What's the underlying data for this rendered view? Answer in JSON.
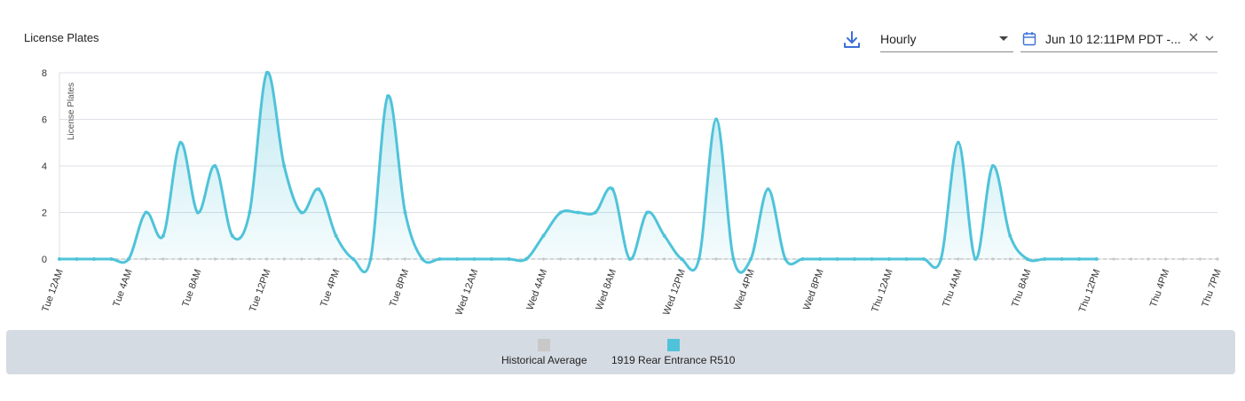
{
  "header": {
    "title": "License Plates",
    "interval_value": "Hourly",
    "date_range_value": "Jun 10 12:11PM PDT -..."
  },
  "icons": {
    "download": "download-icon",
    "dropdown": "caret-down-icon",
    "calendar": "calendar-icon",
    "clear": "close-icon",
    "expand": "chevron-down-icon"
  },
  "colors": {
    "series_primary": "#4fc3d9",
    "series_fill": "#bfe9f2",
    "historical": "#c8c8c8",
    "legend_bg": "#d5dbe3",
    "accent": "#3b6fd8"
  },
  "legend": {
    "items": [
      {
        "label": "Historical Average",
        "color": "#c8c8c8"
      },
      {
        "label": "1919 Rear Entrance R510",
        "color": "#4fc3d9"
      }
    ]
  },
  "chart_data": {
    "type": "area",
    "title": "License Plates",
    "ylabel": "License Plates",
    "xlabel": "",
    "ylim": [
      0,
      8
    ],
    "yticks": [
      0,
      2,
      4,
      6,
      8
    ],
    "x_hour_range": [
      0,
      67
    ],
    "x_ticks": [
      {
        "label": "Tue 12AM",
        "hour": 0
      },
      {
        "label": "Tue 4AM",
        "hour": 4
      },
      {
        "label": "Tue 8AM",
        "hour": 8
      },
      {
        "label": "Tue 12PM",
        "hour": 12
      },
      {
        "label": "Tue 4PM",
        "hour": 16
      },
      {
        "label": "Tue 8PM",
        "hour": 20
      },
      {
        "label": "Wed 12AM",
        "hour": 24
      },
      {
        "label": "Wed 4AM",
        "hour": 28
      },
      {
        "label": "Wed 8AM",
        "hour": 32
      },
      {
        "label": "Wed 12PM",
        "hour": 36
      },
      {
        "label": "Wed 4PM",
        "hour": 40
      },
      {
        "label": "Wed 8PM",
        "hour": 44
      },
      {
        "label": "Thu 12AM",
        "hour": 48
      },
      {
        "label": "Thu 4AM",
        "hour": 52
      },
      {
        "label": "Thu 8AM",
        "hour": 56
      },
      {
        "label": "Thu 12PM",
        "hour": 60
      },
      {
        "label": "Thu 4PM",
        "hour": 64
      },
      {
        "label": "Thu 7PM",
        "hour": 67
      }
    ],
    "grid": true,
    "legend_position": "bottom",
    "series": [
      {
        "name": "1919 Rear Entrance R510",
        "hours": [
          0,
          1,
          2,
          3,
          4,
          5,
          6,
          7,
          8,
          9,
          10,
          11,
          12,
          13,
          14,
          15,
          16,
          17,
          18,
          19,
          20,
          21,
          22,
          23,
          24,
          25,
          26,
          27,
          28,
          29,
          30,
          31,
          32,
          33,
          34,
          35,
          36,
          37,
          38,
          39,
          40,
          41,
          42,
          43,
          44,
          45,
          46,
          47,
          48,
          49,
          50,
          51,
          52,
          53,
          54,
          55,
          56,
          57,
          58,
          59,
          60
        ],
        "values": [
          0,
          0,
          0,
          0,
          0,
          2,
          1,
          5,
          2,
          4,
          1,
          2,
          8,
          4,
          2,
          3,
          1,
          0,
          0,
          7,
          2,
          0,
          0,
          0,
          0,
          0,
          0,
          0,
          1,
          2,
          2,
          2,
          3,
          0,
          2,
          1,
          0,
          0,
          6,
          0,
          0,
          3,
          0,
          0,
          0,
          0,
          0,
          0,
          0,
          0,
          0,
          0,
          5,
          0,
          4,
          1,
          0,
          0,
          0,
          0,
          0
        ]
      },
      {
        "name": "Historical Average",
        "hours": [
          0,
          1,
          2,
          3,
          4,
          5,
          6,
          7,
          8,
          9,
          10,
          11,
          12,
          13,
          14,
          15,
          16,
          17,
          18,
          19,
          20,
          21,
          22,
          23,
          24,
          25,
          26,
          27,
          28,
          29,
          30,
          31,
          32,
          33,
          34,
          35,
          36,
          37,
          38,
          39,
          40,
          41,
          42,
          43,
          44,
          45,
          46,
          47,
          48,
          49,
          50,
          51,
          52,
          53,
          54,
          55,
          56,
          57,
          58,
          59,
          60,
          61,
          62,
          63,
          64,
          65,
          66,
          67
        ],
        "values": [
          0,
          0,
          0,
          0,
          0,
          0,
          0,
          0,
          0,
          0,
          0,
          0,
          0,
          0,
          0,
          0,
          0,
          0,
          0,
          0,
          0,
          0,
          0,
          0,
          0,
          0,
          0,
          0,
          0,
          0,
          0,
          0,
          0,
          0,
          0,
          0,
          0,
          0,
          0,
          0,
          0,
          0,
          0,
          0,
          0,
          0,
          0,
          0,
          0,
          0,
          0,
          0,
          0,
          0,
          0,
          0,
          0,
          0,
          0,
          0,
          0,
          0,
          0,
          0,
          0,
          0,
          0,
          0
        ]
      }
    ]
  }
}
